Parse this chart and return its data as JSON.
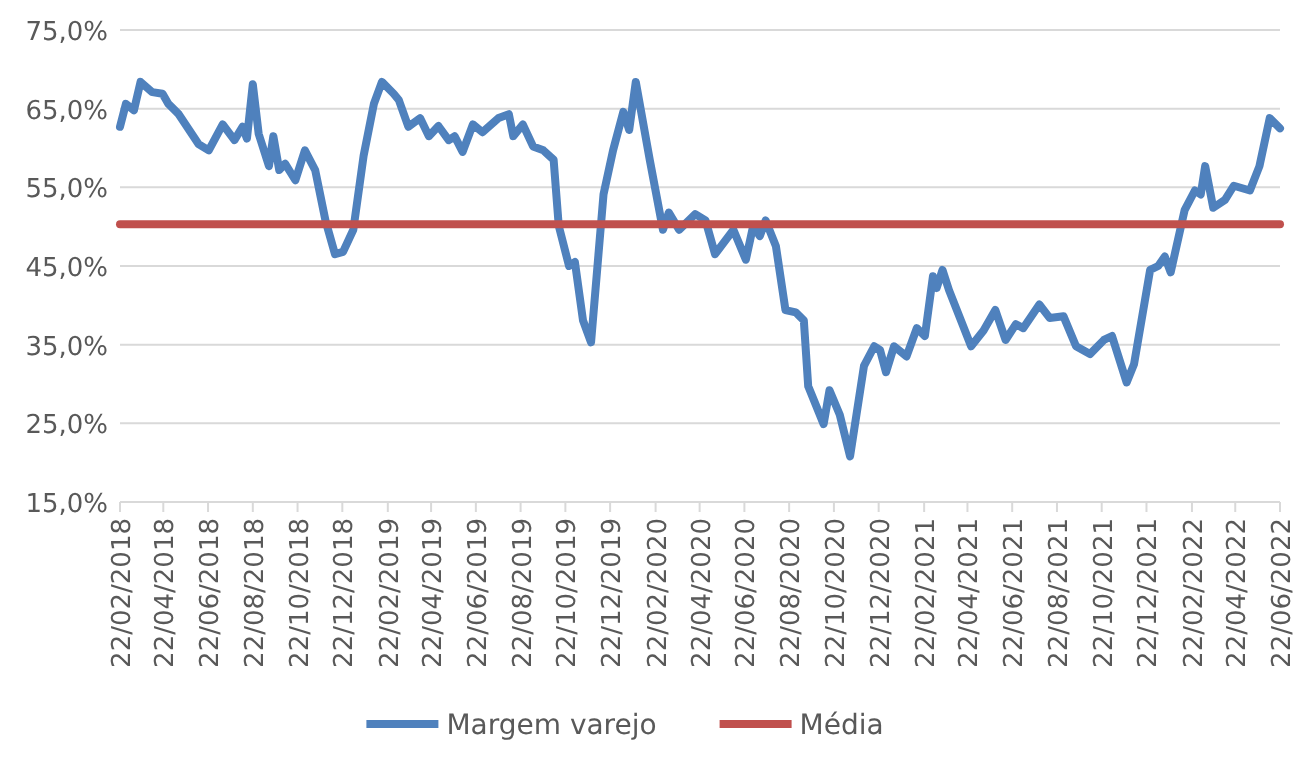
{
  "chart_data": {
    "type": "line",
    "grid": "y",
    "legend": "bottom",
    "line_style": "solid",
    "marker": "none",
    "xlim": [
      "2018-02-22",
      "2022-06-22"
    ],
    "xticks": [
      {
        "value": "2018-02-22",
        "label": "22/02/2018"
      },
      {
        "value": "2018-04-22",
        "label": "22/04/2018"
      },
      {
        "value": "2018-06-22",
        "label": "22/06/2018"
      },
      {
        "value": "2018-08-22",
        "label": "22/08/2018"
      },
      {
        "value": "2018-10-22",
        "label": "22/10/2018"
      },
      {
        "value": "2018-12-22",
        "label": "22/12/2018"
      },
      {
        "value": "2019-02-22",
        "label": "22/02/2019"
      },
      {
        "value": "2019-04-22",
        "label": "22/04/2019"
      },
      {
        "value": "2019-06-22",
        "label": "22/06/2019"
      },
      {
        "value": "2019-08-22",
        "label": "22/08/2019"
      },
      {
        "value": "2019-10-22",
        "label": "22/10/2019"
      },
      {
        "value": "2019-12-22",
        "label": "22/12/2019"
      },
      {
        "value": "2020-02-22",
        "label": "22/02/2020"
      },
      {
        "value": "2020-04-22",
        "label": "22/04/2020"
      },
      {
        "value": "2020-06-22",
        "label": "22/06/2020"
      },
      {
        "value": "2020-08-22",
        "label": "22/08/2020"
      },
      {
        "value": "2020-10-22",
        "label": "22/10/2020"
      },
      {
        "value": "2020-12-22",
        "label": "22/12/2020"
      },
      {
        "value": "2021-02-22",
        "label": "22/02/2021"
      },
      {
        "value": "2021-04-22",
        "label": "22/04/2021"
      },
      {
        "value": "2021-06-22",
        "label": "22/06/2021"
      },
      {
        "value": "2021-08-22",
        "label": "22/08/2021"
      },
      {
        "value": "2021-10-22",
        "label": "22/10/2021"
      },
      {
        "value": "2021-12-22",
        "label": "22/12/2021"
      },
      {
        "value": "2022-02-22",
        "label": "22/02/2022"
      },
      {
        "value": "2022-04-22",
        "label": "22/04/2022"
      },
      {
        "value": "2022-06-22",
        "label": "22/06/2022"
      }
    ],
    "ylim": [
      15,
      75
    ],
    "yticks": [
      {
        "value": 15,
        "label": "15,0%"
      },
      {
        "value": 25,
        "label": "25,0%"
      },
      {
        "value": 35,
        "label": "35,0%"
      },
      {
        "value": 45,
        "label": "45,0%"
      },
      {
        "value": 55,
        "label": "55,0%"
      },
      {
        "value": 65,
        "label": "65,0%"
      },
      {
        "value": 75,
        "label": "75,0%"
      }
    ],
    "series": [
      {
        "name": "Margem varejo",
        "color": "#4f81bd",
        "x": [
          "2018-02-22",
          "2018-03-02",
          "2018-03-13",
          "2018-03-22",
          "2018-04-07",
          "2018-04-21",
          "2018-04-29",
          "2018-05-13",
          "2018-06-09",
          "2018-06-23",
          "2018-07-12",
          "2018-07-28",
          "2018-08-08",
          "2018-08-14",
          "2018-08-22",
          "2018-08-30",
          "2018-09-13",
          "2018-09-19",
          "2018-09-27",
          "2018-10-05",
          "2018-10-19",
          "2018-11-01",
          "2018-11-15",
          "2018-11-29",
          "2018-12-12",
          "2018-12-23",
          "2019-01-06",
          "2019-01-20",
          "2019-02-03",
          "2019-02-14",
          "2019-03-02",
          "2019-03-09",
          "2019-03-22",
          "2019-04-07",
          "2019-04-19",
          "2019-05-02",
          "2019-05-16",
          "2019-05-24",
          "2019-06-04",
          "2019-06-18",
          "2019-07-01",
          "2019-07-23",
          "2019-08-06",
          "2019-08-12",
          "2019-08-25",
          "2019-09-08",
          "2019-09-22",
          "2019-10-06",
          "2019-10-13",
          "2019-10-27",
          "2019-11-04",
          "2019-11-15",
          "2019-11-26",
          "2019-12-13",
          "2019-12-26",
          "2020-01-09",
          "2020-01-17",
          "2020-01-26",
          "2020-02-14",
          "2020-03-03",
          "2020-03-11",
          "2020-03-25",
          "2020-04-16",
          "2020-04-30",
          "2020-05-13",
          "2020-06-07",
          "2020-06-24",
          "2020-07-04",
          "2020-07-13",
          "2020-07-21",
          "2020-08-04",
          "2020-08-17",
          "2020-08-31",
          "2020-09-11",
          "2020-09-17",
          "2020-10-08",
          "2020-10-16",
          "2020-10-30",
          "2020-11-13",
          "2020-12-02",
          "2020-12-16",
          "2020-12-24",
          "2021-01-01",
          "2021-01-12",
          "2021-01-29",
          "2021-02-12",
          "2021-02-23",
          "2021-03-06",
          "2021-03-11",
          "2021-03-19",
          "2021-03-28",
          "2021-04-27",
          "2021-05-14",
          "2021-05-30",
          "2021-06-13",
          "2021-06-27",
          "2021-07-07",
          "2021-07-29",
          "2021-08-12",
          "2021-08-31",
          "2021-09-17",
          "2021-10-06",
          "2021-10-25",
          "2021-11-05",
          "2021-11-25",
          "2021-12-05",
          "2021-12-27",
          "2022-01-07",
          "2022-01-16",
          "2022-01-24",
          "2022-02-12",
          "2022-02-26",
          "2022-03-06",
          "2022-03-12",
          "2022-03-23",
          "2022-04-08",
          "2022-04-20",
          "2022-05-12",
          "2022-05-25",
          "2022-06-08",
          "2022-06-22"
        ],
        "values": [
          62.7,
          65.6,
          64.8,
          68.4,
          67.1,
          66.9,
          65.6,
          64.3,
          60.5,
          59.7,
          63.0,
          61.0,
          62.7,
          61.2,
          68.1,
          61.8,
          57.7,
          61.5,
          57.2,
          58.0,
          55.9,
          59.7,
          57.2,
          50.8,
          46.5,
          46.8,
          49.6,
          59.0,
          65.6,
          68.4,
          66.9,
          66.1,
          62.7,
          63.8,
          61.5,
          62.8,
          61.0,
          61.5,
          59.5,
          63.0,
          62.0,
          63.8,
          64.3,
          61.5,
          63.0,
          60.2,
          59.7,
          58.5,
          50.1,
          45.0,
          45.5,
          38.1,
          35.3,
          54.1,
          59.7,
          64.6,
          62.3,
          68.4,
          58.5,
          49.6,
          51.8,
          49.6,
          51.6,
          50.8,
          46.5,
          49.6,
          45.8,
          50.1,
          48.8,
          50.8,
          47.5,
          39.4,
          39.1,
          38.1,
          29.7,
          24.9,
          29.2,
          26.1,
          20.8,
          32.3,
          34.8,
          34.3,
          31.5,
          34.8,
          33.5,
          37.1,
          36.1,
          43.7,
          42.2,
          44.5,
          41.9,
          34.8,
          36.8,
          39.4,
          35.6,
          37.6,
          37.1,
          40.1,
          38.4,
          38.6,
          34.8,
          33.8,
          35.6,
          36.1,
          30.2,
          32.5,
          44.5,
          45.0,
          46.2,
          44.2,
          52.1,
          54.6,
          54.1,
          57.7,
          52.4,
          53.4,
          55.2,
          54.6,
          57.7,
          63.8,
          62.5
        ]
      },
      {
        "name": "Média",
        "color": "#c0504d",
        "x": [
          "2018-02-22",
          "2022-06-22"
        ],
        "values": [
          50.3,
          50.3
        ]
      }
    ]
  }
}
